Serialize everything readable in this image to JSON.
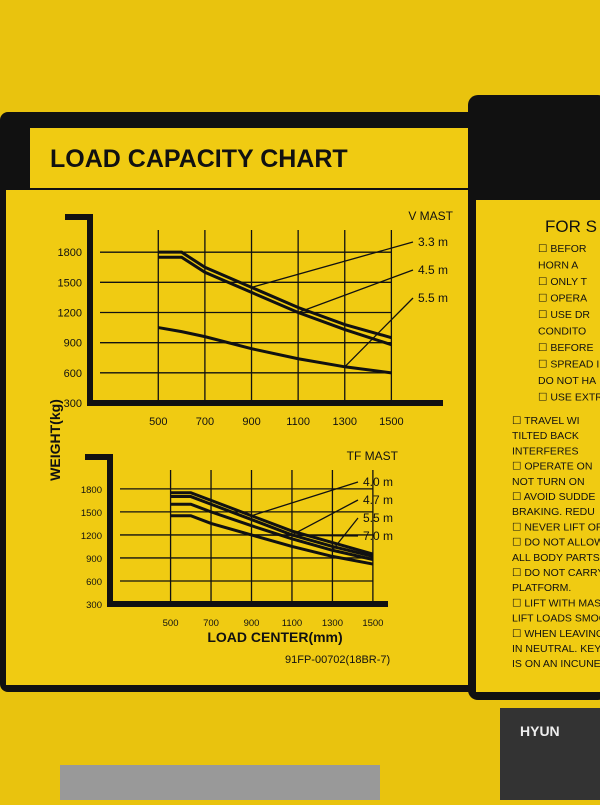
{
  "title": "LOAD CAPACITY CHART",
  "y_label": "WEIGHT(kg)",
  "x_label": "LOAD CENTER(mm)",
  "part_number": "91FP-00702(18BR-7)",
  "side_panel": {
    "heading": "FOR S",
    "lines": [
      "☐ BEFOR",
      "HORN A",
      "☐ ONLY T",
      "☐ OPERA",
      "☐ USE DR",
      "CONDITO",
      "☐ BEFORE",
      "☐ SPREAD I",
      "DO NOT HA",
      "☐ USE EXTR",
      "☐ TRAVEL WI",
      "TILTED BACK",
      "INTERFERES",
      "☐ OPERATE ON",
      "NOT TURN ON",
      "☐ AVOID SUDDE",
      "BRAKING. REDU",
      "☐ NEVER LIFT OR",
      "☐ DO NOT ALLOW",
      "ALL BODY PARTS",
      "☐ DO NOT CARRY P",
      "PLATFORM.",
      "☐ LIFT WITH MAST V",
      "LIFT LOADS SMOO",
      "☐ WHEN LEAVING TR",
      "IN NEUTRAL. KEY OF",
      "IS ON AN INCUNE OF"
    ]
  },
  "badge": "HYUN",
  "chart_data": [
    {
      "type": "line",
      "legend_title": "V MAST",
      "x": [
        500,
        600,
        700,
        900,
        1100,
        1300,
        1500
      ],
      "series": [
        {
          "name": "3.3 m",
          "color": "#111111",
          "values": [
            1800,
            1800,
            1650,
            1450,
            1250,
            1080,
            950
          ]
        },
        {
          "name": "4.5 m",
          "color": "#111111",
          "values": [
            1750,
            1750,
            1600,
            1400,
            1200,
            1030,
            880
          ]
        },
        {
          "name": "5.5 m",
          "color": "#111111",
          "values": [
            1050,
            1010,
            960,
            840,
            740,
            660,
            600
          ]
        }
      ],
      "xlim": [
        250,
        1700
      ],
      "ylim": [
        300,
        2100
      ],
      "xticks": [
        500,
        700,
        900,
        1100,
        1300,
        1500
      ],
      "yticks": [
        300,
        600,
        900,
        1200,
        1500,
        1800
      ],
      "grid": true
    },
    {
      "type": "line",
      "legend_title": "TF MAST",
      "x": [
        500,
        600,
        700,
        900,
        1100,
        1300,
        1500
      ],
      "series": [
        {
          "name": "4.0 m",
          "color": "#111111",
          "values": [
            1750,
            1750,
            1650,
            1450,
            1250,
            1100,
            950
          ]
        },
        {
          "name": "4.7 m",
          "color": "#111111",
          "values": [
            1700,
            1700,
            1600,
            1400,
            1200,
            1050,
            920
          ]
        },
        {
          "name": "5.5 m",
          "color": "#111111",
          "values": [
            1600,
            1600,
            1500,
            1320,
            1150,
            1000,
            880
          ]
        },
        {
          "name": "7.0 m",
          "color": "#111111",
          "values": [
            1450,
            1450,
            1350,
            1200,
            1050,
            920,
            820
          ]
        }
      ],
      "xlim": [
        250,
        1550
      ],
      "ylim": [
        300,
        2150
      ],
      "xticks": [
        500,
        700,
        900,
        1100,
        1300,
        1500
      ],
      "yticks": [
        300,
        600,
        900,
        1200,
        1500,
        1800
      ],
      "grid": true
    }
  ]
}
